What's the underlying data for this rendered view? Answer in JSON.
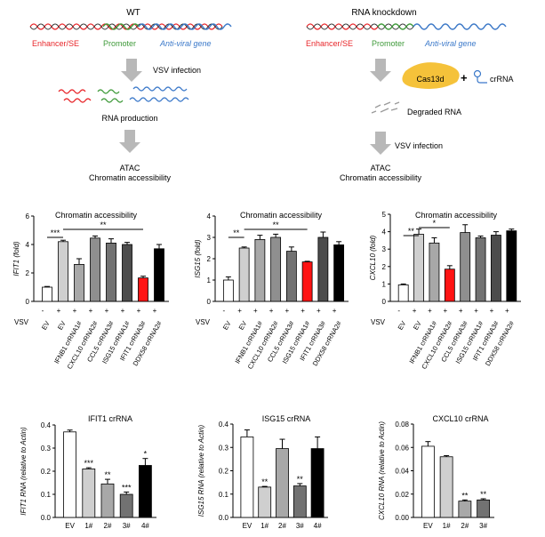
{
  "colors": {
    "red": "#e8262a",
    "green": "#3f9a3a",
    "blue": "#3a78c9",
    "arrow": "#b8b8b8",
    "cas": "#f5c23a",
    "barRed": "#ff1414"
  },
  "schematic": {
    "left": {
      "title": "WT",
      "enhancer": "Enhancer/SE",
      "promoter": "Promoter",
      "gene": "Anti-viral gene",
      "step1": "VSV infection",
      "step2": "RNA production",
      "out1": "ATAC",
      "out2": "Chromatin accessibility"
    },
    "right": {
      "title": "RNA knockdown",
      "enhancer": "Enhancer/SE",
      "promoter": "Promoter",
      "gene": "Anti-viral gene",
      "cas": "Cas13d",
      "plus": "+",
      "crrna": "crRNA",
      "step1": "Degraded RNA",
      "step2": "VSV infection",
      "out1": "ATAC",
      "out2": "Chromatin accessibility"
    }
  },
  "chart_data": [
    {
      "type": "bar",
      "title": "Chromatin accessibility",
      "ylabel": "IFIT1 (fold)",
      "ylim": [
        0,
        6
      ],
      "yticks": [
        "0",
        "2",
        "4",
        "6"
      ],
      "categories": [
        "EV",
        "EV",
        "IFNB1 crRNA1#",
        "CXCL10 crRNA2#",
        "CCL5 crRNA3#",
        "ISG15 crRNA1#",
        "IFIT1 crRNA3#",
        "DDX58 crRNA2#"
      ],
      "vsv": [
        "-",
        "+",
        "+",
        "+",
        "+",
        "+",
        "+",
        "+"
      ],
      "rowlabel": "VSV",
      "values": [
        1.0,
        4.2,
        2.6,
        4.45,
        4.1,
        4.0,
        1.65,
        3.7
      ],
      "errors": [
        0.05,
        0.1,
        0.4,
        0.15,
        0.3,
        0.15,
        0.12,
        0.3
      ],
      "fills": [
        "#ffffff",
        "#cfcfcf",
        "#a8a8a8",
        "#8f8f8f",
        "#727272",
        "#4c4c4c",
        "#ff1414",
        "#000000"
      ],
      "highlight": 6,
      "sig": [
        {
          "label": "***"
        },
        {
          "label": "**"
        }
      ]
    },
    {
      "type": "bar",
      "title": "Chromatin accessibility",
      "ylabel": "ISG15 (fold)",
      "ylim": [
        0,
        4
      ],
      "yticks": [
        "0",
        "1",
        "2",
        "3",
        "4"
      ],
      "categories": [
        "EV",
        "EV",
        "IFNB1 crRNA1#",
        "CXCL10 crRNA2#",
        "CCL5 crRNA3#",
        "ISG15 crRNA1#",
        "IFIT1 crRNA3#",
        "DDX58 crRNA2#"
      ],
      "vsv": [
        "-",
        "+",
        "+",
        "+",
        "+",
        "+",
        "+",
        "+"
      ],
      "rowlabel": "VSV",
      "values": [
        1.0,
        2.5,
        2.9,
        3.0,
        2.35,
        1.85,
        3.0,
        2.65
      ],
      "errors": [
        0.15,
        0.05,
        0.2,
        0.15,
        0.2,
        0.03,
        0.25,
        0.15
      ],
      "fills": [
        "#ffffff",
        "#cfcfcf",
        "#a8a8a8",
        "#8f8f8f",
        "#727272",
        "#ff1414",
        "#4c4c4c",
        "#000000"
      ],
      "highlight": 5,
      "sig": [
        {
          "label": "**"
        },
        {
          "label": "**"
        }
      ]
    },
    {
      "type": "bar",
      "title": "Chromatin accessibility",
      "ylabel": "CXCL10 (fold)",
      "ylim": [
        0,
        5
      ],
      "yticks": [
        "0",
        "1",
        "2",
        "3",
        "4",
        "5"
      ],
      "categories": [
        "EV",
        "EV",
        "IFNB1 crRNA1#",
        "CXCL10 crRNA2#",
        "CCL5 crRNA3#",
        "ISG15 crRNA1#",
        "IFIT1 crRNA3#",
        "DDX58 crRNA2#"
      ],
      "vsv": [
        "-",
        "+",
        "+",
        "+",
        "+",
        "+",
        "+",
        "+"
      ],
      "rowlabel": "VSV",
      "values": [
        0.95,
        3.85,
        3.35,
        1.85,
        3.95,
        3.65,
        3.8,
        4.05
      ],
      "errors": [
        0.05,
        0.3,
        0.3,
        0.2,
        0.45,
        0.1,
        0.2,
        0.1
      ],
      "fills": [
        "#ffffff",
        "#cfcfcf",
        "#a8a8a8",
        "#ff1414",
        "#8f8f8f",
        "#727272",
        "#4c4c4c",
        "#000000"
      ],
      "highlight": 3,
      "sig": [
        {
          "label": "**"
        },
        {
          "label": "*"
        }
      ]
    },
    {
      "type": "bar",
      "title": "IFIT1 crRNA",
      "ylabel": "IFIT1 RNA (relative to Actin)",
      "ylim": [
        0,
        0.4
      ],
      "yticks": [
        "0.0",
        "0.1",
        "0.2",
        "0.3",
        "0.4"
      ],
      "categories": [
        "EV",
        "1#",
        "2#",
        "3#",
        "4#"
      ],
      "values": [
        0.37,
        0.21,
        0.145,
        0.1,
        0.225
      ],
      "errors": [
        0.008,
        0.005,
        0.02,
        0.01,
        0.03
      ],
      "fills": [
        "#ffffff",
        "#cfcfcf",
        "#a8a8a8",
        "#727272",
        "#000000"
      ],
      "stars": [
        "",
        "***",
        "**",
        "***",
        "*"
      ]
    },
    {
      "type": "bar",
      "title": "ISG15 crRNA",
      "ylabel": "ISG15 RNA (relative to Actin)",
      "ylim": [
        0,
        0.4
      ],
      "yticks": [
        "0.0",
        "0.1",
        "0.2",
        "0.3",
        "0.4"
      ],
      "categories": [
        "EV",
        "1#",
        "2#",
        "3#",
        "4#"
      ],
      "values": [
        0.345,
        0.13,
        0.295,
        0.135,
        0.295
      ],
      "errors": [
        0.03,
        0.003,
        0.04,
        0.01,
        0.05
      ],
      "fills": [
        "#ffffff",
        "#cfcfcf",
        "#a8a8a8",
        "#727272",
        "#000000"
      ],
      "stars": [
        "",
        "**",
        "",
        "**",
        ""
      ]
    },
    {
      "type": "bar",
      "title": "CXCL10 crRNA",
      "ylabel": "CXCL10 RNA (relative to Actin)",
      "ylim": [
        0,
        0.08
      ],
      "yticks": [
        "0.00",
        "0.02",
        "0.04",
        "0.06",
        "0.08"
      ],
      "categories": [
        "EV",
        "1#",
        "2#",
        "3#"
      ],
      "values": [
        0.061,
        0.052,
        0.014,
        0.015
      ],
      "errors": [
        0.004,
        0.001,
        0.001,
        0.001
      ],
      "fills": [
        "#ffffff",
        "#cfcfcf",
        "#a8a8a8",
        "#727272"
      ],
      "stars": [
        "",
        "",
        "**",
        "**"
      ]
    }
  ]
}
